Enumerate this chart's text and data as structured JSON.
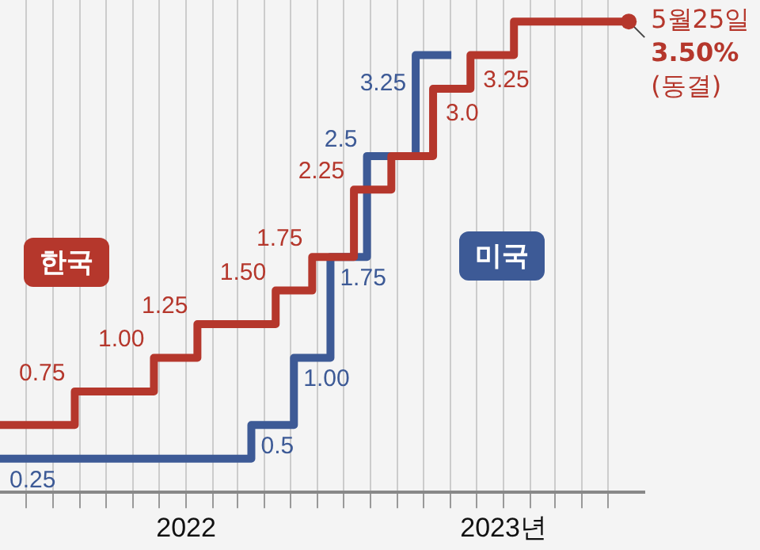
{
  "chart_data": {
    "type": "step",
    "xlim": [
      "2021-06-01",
      "2023-06-12"
    ],
    "ylim": [
      0,
      3.66
    ],
    "xticks": [
      {
        "value": "2021-07-01",
        "label": null
      },
      {
        "value": "2021-08-01",
        "label": null
      },
      {
        "value": "2021-09-01",
        "label": null
      },
      {
        "value": "2021-10-01",
        "label": null
      },
      {
        "value": "2021-11-01",
        "label": null
      },
      {
        "value": "2021-12-01",
        "label": null
      },
      {
        "value": "2022-01-01",
        "label": "2022"
      },
      {
        "value": "2022-02-01",
        "label": null
      },
      {
        "value": "2022-03-01",
        "label": null
      },
      {
        "value": "2022-04-01",
        "label": null
      },
      {
        "value": "2022-05-01",
        "label": null
      },
      {
        "value": "2022-06-01",
        "label": null
      },
      {
        "value": "2022-07-01",
        "label": null
      },
      {
        "value": "2022-08-01",
        "label": null
      },
      {
        "value": "2022-09-01",
        "label": null
      },
      {
        "value": "2022-10-01",
        "label": null
      },
      {
        "value": "2022-11-01",
        "label": null
      },
      {
        "value": "2022-12-01",
        "label": null
      },
      {
        "value": "2023-01-01",
        "label": "2023년"
      },
      {
        "value": "2023-02-01",
        "label": null
      },
      {
        "value": "2023-03-01",
        "label": null
      },
      {
        "value": "2023-04-01",
        "label": null
      },
      {
        "value": "2023-05-01",
        "label": null
      }
    ],
    "series": [
      {
        "name": "한국",
        "color": "#b5372c",
        "x": [
          "2021-06-01",
          "2021-08-26",
          "2021-11-25",
          "2022-01-14",
          "2022-04-14",
          "2022-05-26",
          "2022-07-13",
          "2022-08-25",
          "2022-10-12",
          "2022-11-24",
          "2023-01-13",
          "2023-05-25"
        ],
        "values": [
          0.5,
          0.75,
          1.0,
          1.25,
          1.5,
          1.75,
          2.25,
          2.5,
          3.0,
          3.25,
          3.5,
          3.5
        ],
        "value_labels": [
          null,
          "0.75",
          "1.00",
          "1.25",
          "1.50",
          "1.75",
          "2.25",
          null,
          "3.0",
          "3.25",
          null,
          null
        ]
      },
      {
        "name": "미국",
        "color": "#3d5a96",
        "x": [
          "2021-06-01",
          "2022-03-17",
          "2022-05-05",
          "2022-06-16",
          "2022-07-28",
          "2022-09-22",
          "2022-11-02"
        ],
        "values": [
          0.25,
          0.5,
          1.0,
          1.75,
          2.5,
          3.25,
          3.25
        ],
        "value_labels": [
          "0.25",
          "0.5",
          "1.00",
          "1.75",
          "2.5",
          "3.25",
          null
        ]
      }
    ],
    "annotations": [
      {
        "text": "5월25일\n3.50%\n(동결)",
        "x": "2023-05-25",
        "y": 3.5
      }
    ],
    "grid": "x",
    "tick_labels": "x",
    "legend": false,
    "line_style": "solid",
    "marker": "none"
  }
}
